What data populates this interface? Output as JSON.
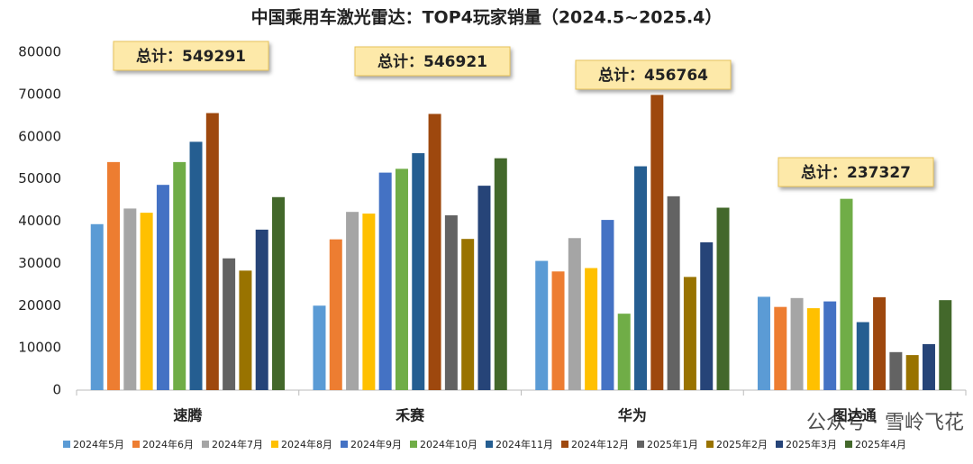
{
  "chart_data": {
    "type": "bar",
    "title": "中国乘用车激光雷达：TOP4玩家销量（2024.5~2025.4）",
    "categories": [
      "速腾",
      "禾赛",
      "华为",
      "图达通"
    ],
    "series": [
      {
        "name": "2024年5月",
        "color": "#5b9bd5",
        "values": [
          39300,
          20000,
          30600,
          22100
        ]
      },
      {
        "name": "2024年6月",
        "color": "#ed7d31",
        "values": [
          54000,
          35700,
          28100,
          19700
        ]
      },
      {
        "name": "2024年7月",
        "color": "#a5a5a5",
        "values": [
          43000,
          42200,
          36000,
          21800
        ]
      },
      {
        "name": "2024年8月",
        "color": "#ffc000",
        "values": [
          42000,
          41800,
          28900,
          19400
        ]
      },
      {
        "name": "2024年9月",
        "color": "#4472c4",
        "values": [
          48600,
          51500,
          40300,
          21000
        ]
      },
      {
        "name": "2024年10月",
        "color": "#70ad47",
        "values": [
          54000,
          52400,
          18100,
          45300
        ]
      },
      {
        "name": "2024年11月",
        "color": "#255e91",
        "values": [
          58800,
          56100,
          53000,
          16100
        ]
      },
      {
        "name": "2024年12月",
        "color": "#9e480e",
        "values": [
          65600,
          65400,
          69900,
          22000
        ]
      },
      {
        "name": "2025年1月",
        "color": "#636363",
        "values": [
          31200,
          41400,
          45900,
          9000
        ]
      },
      {
        "name": "2025年2月",
        "color": "#997300",
        "values": [
          28300,
          35800,
          26800,
          8300
        ]
      },
      {
        "name": "2025年3月",
        "color": "#264478",
        "values": [
          38000,
          48400,
          35000,
          10900
        ]
      },
      {
        "name": "2025年4月",
        "color": "#43682b",
        "values": [
          45700,
          54900,
          43200,
          21300
        ]
      }
    ],
    "annotations": [
      "总计：549291",
      "总计：546921",
      "总计：456764",
      "总计：237327"
    ],
    "watermark": "公众号 · 雪岭飞花",
    "ylim": [
      0,
      80000
    ],
    "yticks": [
      0,
      10000,
      20000,
      30000,
      40000,
      50000,
      60000,
      70000,
      80000
    ],
    "grid": false,
    "legend": "bottom"
  }
}
